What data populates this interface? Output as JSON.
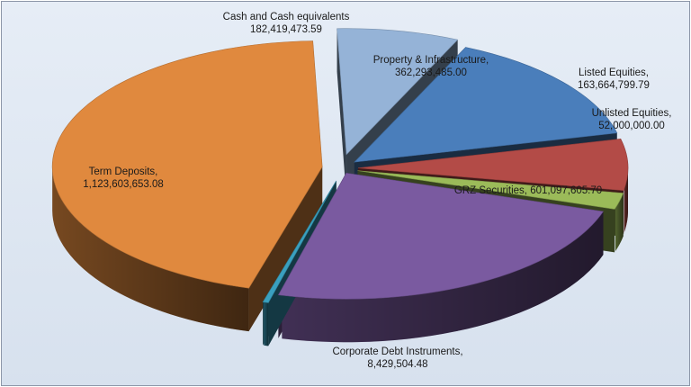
{
  "chart_data": {
    "type": "pie",
    "style": "3d-exploded",
    "title": "",
    "legend": "none",
    "slices": [
      {
        "name": "Cash and Cash equivalents",
        "value": 182419473.59,
        "value_label": "182,419,473.59",
        "color": "#95b3d7"
      },
      {
        "name": "Property & Infrastructure,",
        "value": 362293485.0,
        "value_label": "362,293,485.00",
        "color": "#4a7ebb"
      },
      {
        "name": "Listed Equities,",
        "value": 163664799.79,
        "value_label": "163,664,799.79",
        "color": "#b34b47"
      },
      {
        "name": "Unlisted Equities,",
        "value": 52000000.0,
        "value_label": "52,000,000.00",
        "color": "#9bbb59"
      },
      {
        "name": "GRZ Securities, 601,097,605.70",
        "value": 601097605.7,
        "value_label": "",
        "color": "#7a5aa0"
      },
      {
        "name": "Corporate Debt Instruments,",
        "value": 8429504.48,
        "value_label": "8,429,504.48",
        "color": "#3aa0bf"
      },
      {
        "name": "Term Deposits,",
        "value": 1123603653.08,
        "value_label": "1,123,603,653.08",
        "color": "#e0893e"
      }
    ]
  }
}
